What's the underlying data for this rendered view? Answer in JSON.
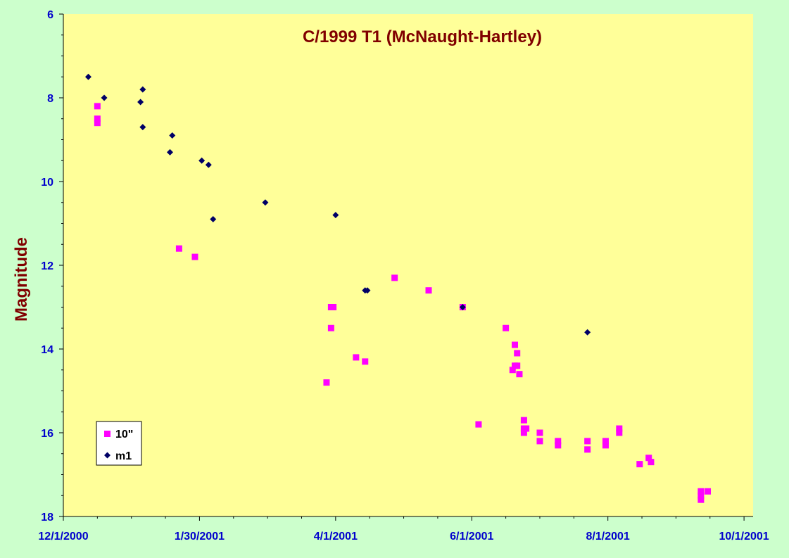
{
  "chart_data": {
    "type": "scatter",
    "title": "C/1999 T1 (McNaught-Hartley)",
    "xlabel": "",
    "ylabel": "Magnitude",
    "x_axis_type": "date",
    "xlim": [
      "2000-12-01",
      "2001-10-01"
    ],
    "ylim": [
      6,
      18
    ],
    "y_inverted": true,
    "x_tick_labels": [
      "12/1/2000",
      "1/30/2001",
      "4/1/2001",
      "6/1/2001",
      "8/1/2001",
      "10/1/2001"
    ],
    "y_tick_labels": [
      "6",
      "8",
      "10",
      "12",
      "14",
      "16",
      "18"
    ],
    "legend_position": "bottom-left",
    "grid": false,
    "colors": {
      "plot_background": "#ffff99",
      "page_background": "#ccffcc",
      "title": "#800000",
      "ticks": "#0000cc"
    },
    "series": [
      {
        "name": "10\"",
        "marker": "square",
        "color": "#ff00ff",
        "points": [
          [
            "2000-12-16",
            8.2
          ],
          [
            "2000-12-16",
            8.5
          ],
          [
            "2000-12-16",
            8.6
          ],
          [
            "2001-01-21",
            11.6
          ],
          [
            "2001-01-28",
            11.8
          ],
          [
            "2001-03-27",
            14.8
          ],
          [
            "2001-03-29",
            13.0
          ],
          [
            "2001-03-29",
            13.5
          ],
          [
            "2001-03-30",
            13.0
          ],
          [
            "2001-04-09",
            14.2
          ],
          [
            "2001-04-13",
            14.3
          ],
          [
            "2001-04-26",
            12.3
          ],
          [
            "2001-05-11",
            12.6
          ],
          [
            "2001-05-26",
            13.0
          ],
          [
            "2001-06-02",
            15.8
          ],
          [
            "2001-06-14",
            13.5
          ],
          [
            "2001-06-17",
            14.5
          ],
          [
            "2001-06-18",
            13.9
          ],
          [
            "2001-06-18",
            14.4
          ],
          [
            "2001-06-19",
            14.4
          ],
          [
            "2001-06-19",
            14.1
          ],
          [
            "2001-06-20",
            14.6
          ],
          [
            "2001-06-22",
            15.7
          ],
          [
            "2001-06-22",
            15.9
          ],
          [
            "2001-06-22",
            16.0
          ],
          [
            "2001-06-23",
            15.9
          ],
          [
            "2001-06-29",
            16.0
          ],
          [
            "2001-06-29",
            16.2
          ],
          [
            "2001-07-07",
            16.2
          ],
          [
            "2001-07-07",
            16.3
          ],
          [
            "2001-07-20",
            16.2
          ],
          [
            "2001-07-20",
            16.4
          ],
          [
            "2001-07-28",
            16.2
          ],
          [
            "2001-07-28",
            16.3
          ],
          [
            "2001-08-03",
            15.9
          ],
          [
            "2001-08-03",
            16.0
          ],
          [
            "2001-08-12",
            16.75
          ],
          [
            "2001-08-16",
            16.6
          ],
          [
            "2001-08-17",
            16.7
          ],
          [
            "2001-09-08",
            17.4
          ],
          [
            "2001-09-08",
            17.5
          ],
          [
            "2001-09-08",
            17.6
          ],
          [
            "2001-09-11",
            17.4
          ]
        ]
      },
      {
        "name": "m1",
        "marker": "diamond",
        "color": "#000066",
        "points": [
          [
            "2000-12-12",
            7.5
          ],
          [
            "2000-12-19",
            8.0
          ],
          [
            "2001-01-04",
            8.1
          ],
          [
            "2001-01-05",
            7.8
          ],
          [
            "2001-01-05",
            8.7
          ],
          [
            "2001-01-17",
            9.3
          ],
          [
            "2001-01-18",
            8.9
          ],
          [
            "2001-01-31",
            9.5
          ],
          [
            "2001-02-03",
            9.6
          ],
          [
            "2001-02-05",
            10.9
          ],
          [
            "2001-02-28",
            10.5
          ],
          [
            "2001-03-31",
            10.8
          ],
          [
            "2001-04-13",
            12.6
          ],
          [
            "2001-04-14",
            12.6
          ],
          [
            "2001-05-26",
            13.0
          ],
          [
            "2001-07-20",
            13.6
          ]
        ]
      }
    ]
  }
}
